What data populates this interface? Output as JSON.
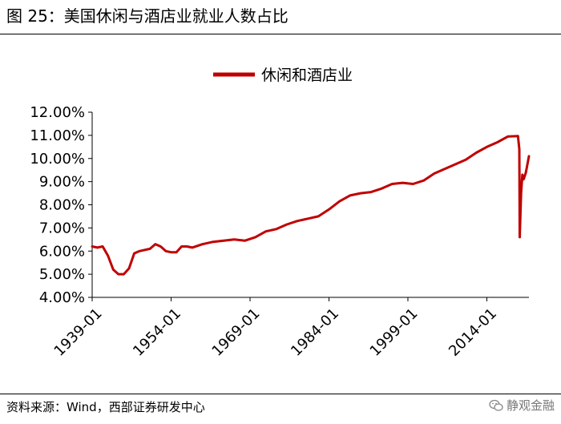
{
  "figure": {
    "title": "图 25：美国休闲与酒店业就业人数占比",
    "source": "资料来源：Wind，西部证券研发中心",
    "watermark": "静观金融",
    "watermark_icon": "wechat-icon"
  },
  "chart_data": {
    "type": "line",
    "title": "",
    "xlabel": "",
    "ylabel": "",
    "legend_position": "top-center",
    "grid": false,
    "ylim": [
      0.04,
      0.12
    ],
    "y_ticks": [
      "4.00%",
      "5.00%",
      "6.00%",
      "7.00%",
      "8.00%",
      "9.00%",
      "10.00%",
      "11.00%",
      "12.00%"
    ],
    "x_ticks": [
      "1939-01",
      "1954-01",
      "1969-01",
      "1984-01",
      "1999-01",
      "2014-01"
    ],
    "x_range": [
      "1939-01",
      "2022-01"
    ],
    "series": [
      {
        "name": "休闲和酒店业",
        "color": "#c00000",
        "x": [
          "1939-01",
          "1940-01",
          "1941-01",
          "1942-01",
          "1943-01",
          "1944-01",
          "1945-01",
          "1946-01",
          "1947-01",
          "1948-01",
          "1949-01",
          "1950-01",
          "1951-01",
          "1952-01",
          "1953-01",
          "1954-01",
          "1955-01",
          "1956-01",
          "1957-01",
          "1958-01",
          "1960-01",
          "1962-01",
          "1964-01",
          "1966-01",
          "1968-01",
          "1970-01",
          "1972-01",
          "1974-01",
          "1976-01",
          "1978-01",
          "1980-01",
          "1982-01",
          "1984-01",
          "1986-01",
          "1988-01",
          "1990-01",
          "1992-01",
          "1994-01",
          "1996-01",
          "1998-01",
          "2000-01",
          "2002-01",
          "2004-01",
          "2006-01",
          "2008-01",
          "2010-01",
          "2012-01",
          "2014-01",
          "2016-01",
          "2018-01",
          "2019-12",
          "2020-03",
          "2020-04",
          "2020-07",
          "2020-10",
          "2021-01",
          "2021-06",
          "2022-01"
        ],
        "values": [
          0.062,
          0.0615,
          0.062,
          0.058,
          0.052,
          0.05,
          0.05,
          0.0525,
          0.059,
          0.06,
          0.0605,
          0.061,
          0.063,
          0.062,
          0.06,
          0.0595,
          0.0595,
          0.062,
          0.062,
          0.0615,
          0.063,
          0.064,
          0.0645,
          0.065,
          0.0645,
          0.066,
          0.0685,
          0.0695,
          0.0715,
          0.073,
          0.074,
          0.075,
          0.078,
          0.0815,
          0.084,
          0.085,
          0.0855,
          0.087,
          0.089,
          0.0895,
          0.089,
          0.0905,
          0.0935,
          0.0955,
          0.0975,
          0.0995,
          0.1025,
          0.105,
          0.107,
          0.1095,
          0.1097,
          0.104,
          0.066,
          0.085,
          0.093,
          0.091,
          0.094,
          0.101
        ]
      }
    ]
  }
}
